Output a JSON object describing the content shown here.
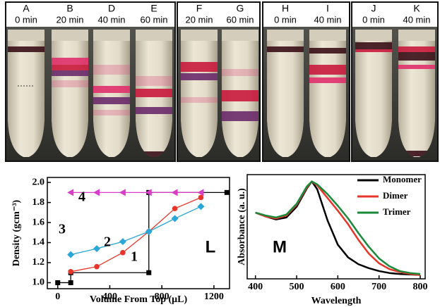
{
  "panels": [
    {
      "letter": "A",
      "time": "0 min"
    },
    {
      "letter": "B",
      "time": "20 min"
    },
    {
      "letter": "D",
      "time": "40 min"
    },
    {
      "letter": "E",
      "time": "60 min"
    },
    {
      "letter": "F",
      "time": "20 min"
    },
    {
      "letter": "G",
      "time": "60 min"
    },
    {
      "letter": "H",
      "time": "0 min"
    },
    {
      "letter": "I",
      "time": "40 min"
    },
    {
      "letter": "J",
      "time": "0 min"
    },
    {
      "letter": "K",
      "time": "40 min"
    }
  ],
  "chart_data": [
    {
      "type": "scatter-line",
      "xlabel": "Volume From Top (μL)",
      "ylabel": "Density (gcm⁻³)",
      "xlim": [
        -80,
        1320
      ],
      "xticks": [
        0,
        400,
        800,
        1200
      ],
      "ylim": [
        0.94,
        2.05
      ],
      "yticks": [
        {
          "value": 1.0,
          "label": "1.0"
        },
        1.2,
        1.4,
        1.6,
        1.8,
        {
          "value": 2.0,
          "label": "2.0"
        }
      ],
      "annotations": [
        "1",
        "2",
        "3",
        "4",
        "L"
      ],
      "series": [
        {
          "marker": "square",
          "color": "#000000",
          "x": [
            0,
            100,
            100,
            700,
            700,
            1300
          ],
          "values": [
            1.0,
            1.0,
            1.1,
            1.1,
            1.9,
            1.9
          ]
        },
        {
          "marker": "circle",
          "color": "#e8352a",
          "x": [
            100,
            300,
            500,
            700,
            900,
            1100
          ],
          "values": [
            1.11,
            1.16,
            1.3,
            1.51,
            1.74,
            1.85
          ]
        },
        {
          "marker": "diamond",
          "color": "#2aa6d8",
          "x": [
            100,
            300,
            500,
            700,
            900,
            1100
          ],
          "values": [
            1.28,
            1.34,
            1.41,
            1.51,
            1.64,
            1.76
          ]
        },
        {
          "marker": "triangle",
          "color": "#d83cc8",
          "x": [
            100,
            300,
            500,
            700,
            900,
            1100
          ],
          "values": [
            1.9,
            1.9,
            1.9,
            1.9,
            1.9,
            1.9
          ]
        }
      ]
    },
    {
      "type": "line",
      "xlabel": "Wavelength",
      "ylabel": "Absorbance (a. u.)",
      "annotation": "M",
      "xlim": [
        380,
        812
      ],
      "xticks": [
        400,
        500,
        600,
        700,
        800
      ],
      "ylim": [
        0,
        1.07
      ],
      "x": [
        400,
        425,
        450,
        475,
        500,
        525,
        537,
        550,
        575,
        600,
        625,
        650,
        675,
        700,
        725,
        750,
        775,
        800
      ],
      "series": [
        {
          "name": "Monomer",
          "color": "#000000",
          "values": [
            0.68,
            0.64,
            0.61,
            0.63,
            0.74,
            0.93,
            1.0,
            0.92,
            0.6,
            0.35,
            0.22,
            0.15,
            0.11,
            0.08,
            0.06,
            0.05,
            0.045,
            0.04
          ]
        },
        {
          "name": "Dimer",
          "color": "#e8352a",
          "values": [
            0.68,
            0.64,
            0.62,
            0.65,
            0.76,
            0.94,
            1.0,
            0.96,
            0.83,
            0.7,
            0.56,
            0.4,
            0.26,
            0.16,
            0.1,
            0.07,
            0.05,
            0.04
          ]
        },
        {
          "name": "Trimer",
          "color": "#1a8a3a",
          "values": [
            0.68,
            0.65,
            0.63,
            0.66,
            0.77,
            0.95,
            1.0,
            0.97,
            0.87,
            0.75,
            0.62,
            0.47,
            0.33,
            0.21,
            0.13,
            0.08,
            0.06,
            0.05
          ]
        }
      ]
    }
  ]
}
